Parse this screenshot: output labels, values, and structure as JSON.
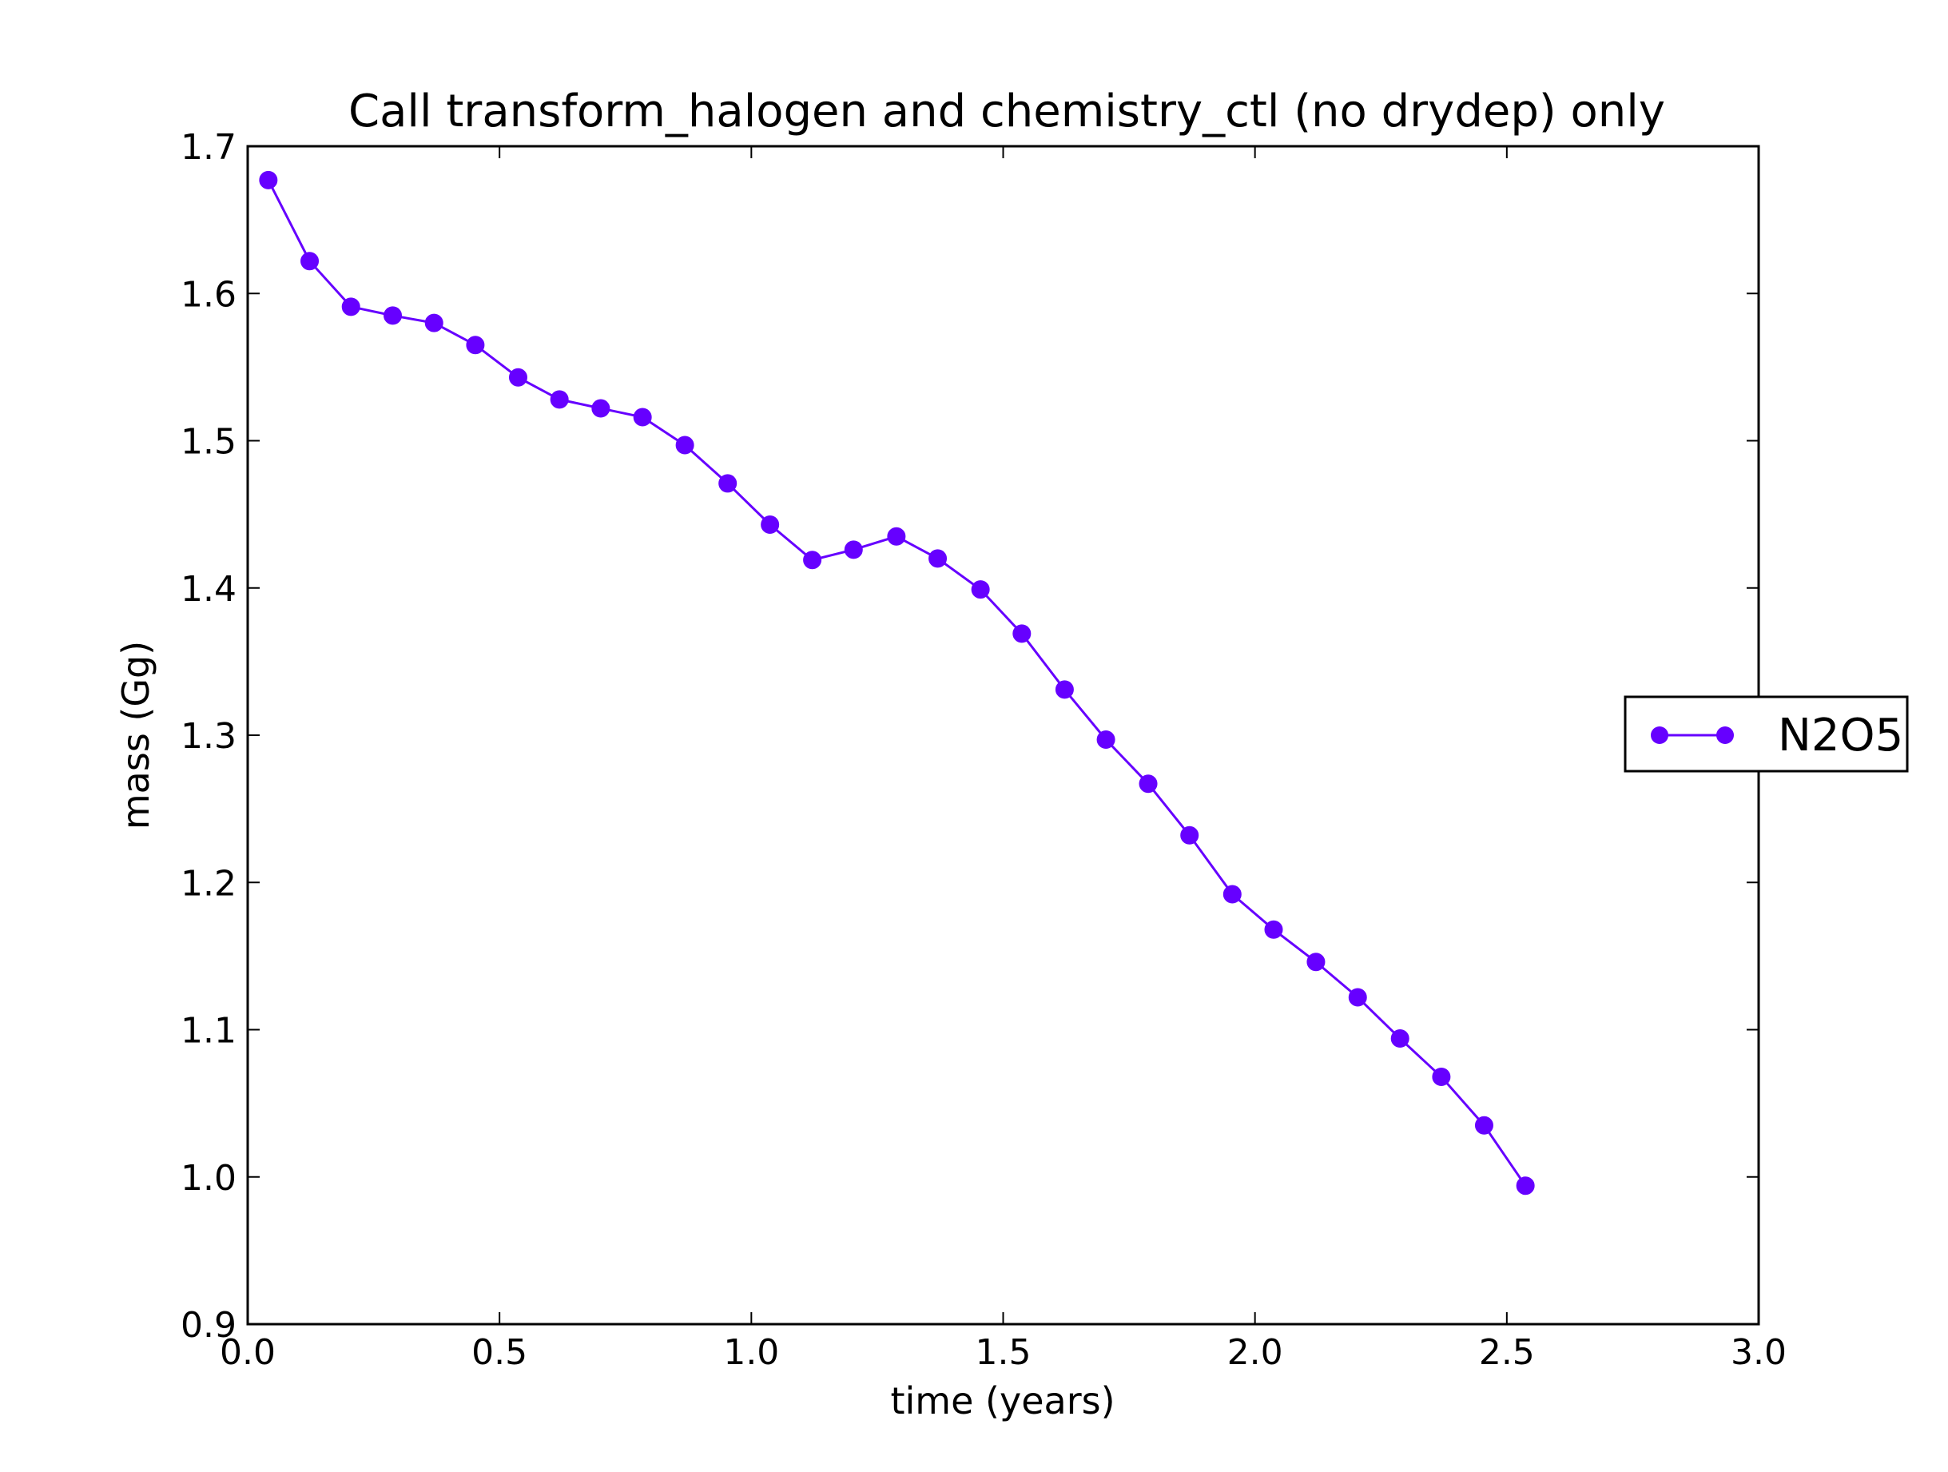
{
  "chart_data": {
    "type": "line",
    "title": "Call transform_halogen and chemistry_ctl (no drydep) only",
    "xlabel": "time (years)",
    "ylabel": "mass (Gg)",
    "xlim": [
      0.0,
      3.0
    ],
    "ylim": [
      0.9,
      1.7
    ],
    "xticks": [
      "0.0",
      "0.5",
      "1.0",
      "1.5",
      "2.0",
      "2.5",
      "3.0"
    ],
    "yticks": [
      "0.9",
      "1.0",
      "1.1",
      "1.2",
      "1.3",
      "1.4",
      "1.5",
      "1.6",
      "1.7"
    ],
    "grid": false,
    "legend_position": "outside-right",
    "series": [
      {
        "name": "N2O5",
        "color": "#6600ff",
        "marker": "circle",
        "x": [
          0.041,
          0.123,
          0.205,
          0.288,
          0.37,
          0.452,
          0.537,
          0.619,
          0.701,
          0.784,
          0.868,
          0.953,
          1.037,
          1.121,
          1.203,
          1.288,
          1.37,
          1.455,
          1.537,
          1.622,
          1.704,
          1.788,
          1.87,
          1.955,
          2.037,
          2.121,
          2.204,
          2.288,
          2.37,
          2.455,
          2.537
        ],
        "y": [
          1.677,
          1.622,
          1.591,
          1.585,
          1.58,
          1.565,
          1.543,
          1.528,
          1.522,
          1.516,
          1.497,
          1.471,
          1.443,
          1.419,
          1.426,
          1.435,
          1.42,
          1.399,
          1.369,
          1.331,
          1.297,
          1.267,
          1.232,
          1.192,
          1.168,
          1.146,
          1.122,
          1.094,
          1.068,
          1.035,
          0.994
        ]
      }
    ]
  }
}
